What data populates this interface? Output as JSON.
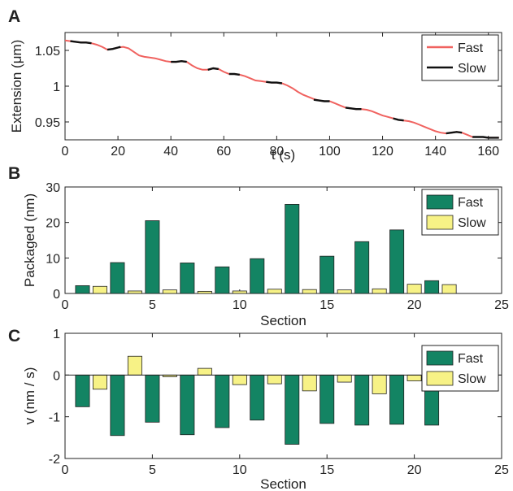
{
  "chart_data": [
    {
      "panel": "A",
      "type": "line",
      "xlabel": "t (s)",
      "ylabel": "Extension (μm)",
      "xlim": [
        0,
        165
      ],
      "ylim": [
        0.925,
        1.075
      ],
      "xticks": [
        0,
        20,
        40,
        60,
        80,
        100,
        120,
        140,
        160
      ],
      "yticks": [
        0.95,
        1,
        1.05
      ],
      "ytick_labels": [
        "0.95",
        "1",
        "1.05"
      ],
      "legend": {
        "position": "top-right",
        "entries": [
          "Fast",
          "Slow"
        ]
      },
      "series": [
        {
          "name": "Fast",
          "color": "#f0625f",
          "points": [
            [
              0,
              1.064
            ],
            [
              2,
              1.063
            ],
            [
              4,
              1.062
            ],
            [
              6,
              1.061
            ],
            [
              8,
              1.061
            ],
            [
              10,
              1.06
            ],
            [
              12,
              1.058
            ],
            [
              14,
              1.055
            ],
            [
              16,
              1.051
            ],
            [
              18,
              1.052
            ],
            [
              20,
              1.054
            ],
            [
              22,
              1.055
            ],
            [
              24,
              1.053
            ],
            [
              26,
              1.048
            ],
            [
              28,
              1.043
            ],
            [
              30,
              1.041
            ],
            [
              32,
              1.04
            ],
            [
              34,
              1.039
            ],
            [
              36,
              1.037
            ],
            [
              38,
              1.035
            ],
            [
              40,
              1.034
            ],
            [
              42,
              1.034
            ],
            [
              44,
              1.035
            ],
            [
              46,
              1.034
            ],
            [
              48,
              1.029
            ],
            [
              50,
              1.025
            ],
            [
              52,
              1.023
            ],
            [
              54,
              1.023
            ],
            [
              56,
              1.025
            ],
            [
              58,
              1.024
            ],
            [
              60,
              1.02
            ],
            [
              62,
              1.017
            ],
            [
              64,
              1.017
            ],
            [
              66,
              1.016
            ],
            [
              68,
              1.014
            ],
            [
              70,
              1.011
            ],
            [
              72,
              1.008
            ],
            [
              74,
              1.007
            ],
            [
              76,
              1.006
            ],
            [
              78,
              1.005
            ],
            [
              80,
              1.005
            ],
            [
              82,
              1.004
            ],
            [
              84,
              1.001
            ],
            [
              86,
              0.997
            ],
            [
              88,
              0.992
            ],
            [
              90,
              0.988
            ],
            [
              92,
              0.985
            ],
            [
              94,
              0.982
            ],
            [
              96,
              0.98
            ],
            [
              98,
              0.979
            ],
            [
              100,
              0.979
            ],
            [
              102,
              0.976
            ],
            [
              104,
              0.973
            ],
            [
              106,
              0.97
            ],
            [
              108,
              0.969
            ],
            [
              110,
              0.968
            ],
            [
              112,
              0.968
            ],
            [
              114,
              0.967
            ],
            [
              116,
              0.965
            ],
            [
              118,
              0.962
            ],
            [
              120,
              0.959
            ],
            [
              122,
              0.957
            ],
            [
              124,
              0.955
            ],
            [
              126,
              0.953
            ],
            [
              128,
              0.952
            ],
            [
              130,
              0.951
            ],
            [
              132,
              0.949
            ],
            [
              134,
              0.946
            ],
            [
              136,
              0.943
            ],
            [
              138,
              0.94
            ],
            [
              140,
              0.937
            ],
            [
              142,
              0.935
            ],
            [
              144,
              0.934
            ],
            [
              146,
              0.935
            ],
            [
              148,
              0.936
            ],
            [
              150,
              0.935
            ],
            [
              152,
              0.932
            ],
            [
              154,
              0.929
            ],
            [
              156,
              0.929
            ],
            [
              158,
              0.929
            ],
            [
              160,
              0.928
            ],
            [
              162,
              0.928
            ],
            [
              164,
              0.928
            ]
          ]
        },
        {
          "name": "Slow",
          "color": "#111111",
          "segments": [
            [
              [
                2,
                1.063
              ],
              [
                4,
                1.062
              ],
              [
                6,
                1.061
              ],
              [
                8,
                1.061
              ],
              [
                10,
                1.06
              ]
            ],
            [
              [
                16,
                1.051
              ],
              [
                18,
                1.052
              ],
              [
                20,
                1.054
              ],
              [
                21,
                1.055
              ]
            ],
            [
              [
                40,
                1.034
              ],
              [
                42,
                1.034
              ],
              [
                44,
                1.035
              ],
              [
                46,
                1.034
              ]
            ],
            [
              [
                54,
                1.023
              ],
              [
                56,
                1.025
              ],
              [
                58,
                1.024
              ]
            ],
            [
              [
                62,
                1.017
              ],
              [
                64,
                1.017
              ],
              [
                66,
                1.016
              ]
            ],
            [
              [
                76,
                1.006
              ],
              [
                78,
                1.005
              ],
              [
                80,
                1.005
              ],
              [
                82,
                1.004
              ]
            ],
            [
              [
                94,
                0.981
              ],
              [
                96,
                0.98
              ],
              [
                98,
                0.979
              ],
              [
                100,
                0.979
              ]
            ],
            [
              [
                106,
                0.97
              ],
              [
                108,
                0.969
              ],
              [
                110,
                0.968
              ],
              [
                112,
                0.968
              ]
            ],
            [
              [
                124,
                0.955
              ],
              [
                126,
                0.953
              ],
              [
                128,
                0.952
              ]
            ],
            [
              [
                144,
                0.934
              ],
              [
                146,
                0.935
              ],
              [
                148,
                0.936
              ],
              [
                150,
                0.935
              ]
            ],
            [
              [
                154,
                0.929
              ],
              [
                156,
                0.929
              ],
              [
                158,
                0.929
              ],
              [
                160,
                0.928
              ],
              [
                162,
                0.928
              ],
              [
                164,
                0.928
              ]
            ]
          ]
        }
      ]
    },
    {
      "panel": "B",
      "type": "bar",
      "xlabel": "Section",
      "ylabel": "Packaged (nm)",
      "xlim": [
        0,
        25
      ],
      "ylim": [
        0,
        30
      ],
      "xticks": [
        0,
        5,
        10,
        15,
        20,
        25
      ],
      "yticks": [
        0,
        10,
        20,
        30
      ],
      "legend": {
        "position": "top-right",
        "entries": [
          "Fast",
          "Slow"
        ]
      },
      "series": [
        {
          "name": "Fast",
          "color": "#138463",
          "x": [
            1,
            3,
            5,
            7,
            9,
            11,
            13,
            15,
            17,
            19,
            21
          ],
          "values": [
            2.2,
            8.7,
            20.5,
            8.6,
            7.5,
            9.8,
            25.1,
            10.5,
            14.6,
            17.9,
            3.6
          ]
        },
        {
          "name": "Slow",
          "color": "#f7f286",
          "x": [
            2,
            4,
            6,
            8,
            10,
            12,
            14,
            16,
            18,
            20,
            22
          ],
          "values": [
            2.0,
            0.7,
            1.0,
            0.6,
            0.7,
            1.2,
            1.1,
            1.0,
            1.3,
            2.6,
            2.5
          ]
        }
      ]
    },
    {
      "panel": "C",
      "type": "bar",
      "xlabel": "Section",
      "ylabel": "v (nm / s)",
      "xlim": [
        0,
        25
      ],
      "ylim": [
        -2,
        1
      ],
      "xticks": [
        0,
        5,
        10,
        15,
        20,
        25
      ],
      "yticks": [
        -2,
        -1,
        0,
        1
      ],
      "legend": {
        "position": "top-right",
        "entries": [
          "Fast",
          "Slow"
        ]
      },
      "series": [
        {
          "name": "Fast",
          "color": "#138463",
          "x": [
            1,
            3,
            5,
            7,
            9,
            11,
            13,
            15,
            17,
            19,
            21
          ],
          "values": [
            -0.76,
            -1.45,
            -1.13,
            -1.43,
            -1.26,
            -1.08,
            -1.66,
            -1.16,
            -1.2,
            -1.18,
            -1.2
          ]
        },
        {
          "name": "Slow",
          "color": "#f7f286",
          "x": [
            2,
            4,
            6,
            8,
            10,
            12,
            14,
            16,
            18,
            20,
            22
          ],
          "values": [
            -0.34,
            0.45,
            -0.04,
            0.16,
            -0.23,
            -0.21,
            -0.38,
            -0.17,
            -0.45,
            -0.14,
            -0.21
          ]
        }
      ]
    }
  ]
}
